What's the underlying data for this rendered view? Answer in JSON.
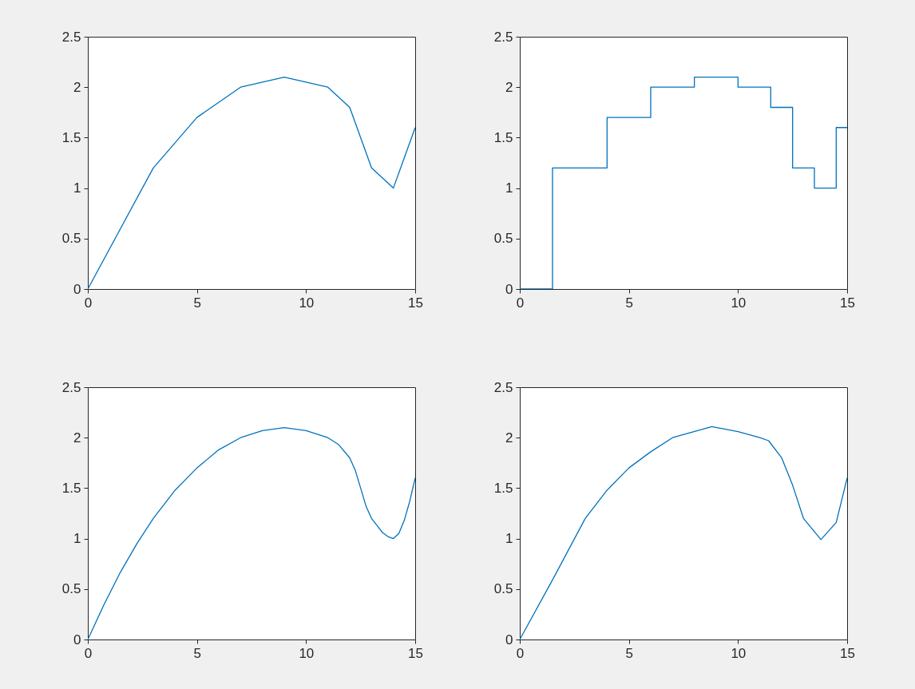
{
  "chart_data": [
    {
      "type": "line",
      "x": [
        0,
        3,
        5,
        7,
        9,
        11,
        12,
        13,
        14,
        15
      ],
      "series": [
        {
          "color": "#0072bd",
          "values": [
            0,
            1.2,
            1.7,
            2.0,
            2.1,
            2.0,
            1.8,
            1.2,
            1.0,
            1.6
          ]
        }
      ],
      "xlim": [
        0,
        15
      ],
      "xticks": [
        0,
        5,
        10,
        15
      ],
      "ylim": [
        0,
        2.5
      ],
      "yticks": [
        0,
        0.5,
        1,
        1.5,
        2,
        2.5
      ],
      "grid": false
    },
    {
      "type": "step",
      "x": [
        0,
        3,
        5,
        7,
        9,
        11,
        12,
        13,
        14,
        15
      ],
      "series": [
        {
          "color": "#0072bd",
          "values": [
            0,
            1.2,
            1.7,
            2.0,
            2.1,
            2.0,
            1.8,
            1.2,
            1.0,
            1.6
          ]
        }
      ],
      "xlim": [
        0,
        15
      ],
      "xticks": [
        0,
        5,
        10,
        15
      ],
      "ylim": [
        0,
        2.5
      ],
      "yticks": [
        0,
        0.5,
        1,
        1.5,
        2,
        2.5
      ],
      "grid": false
    },
    {
      "type": "line",
      "x": [
        0,
        0.75,
        1.5,
        2.25,
        3,
        4,
        5,
        6,
        7,
        8,
        9,
        10,
        11,
        11.5,
        12,
        12.25,
        12.5,
        12.75,
        13,
        13.25,
        13.5,
        13.75,
        14,
        14.25,
        14.5,
        14.75,
        15
      ],
      "series": [
        {
          "color": "#0072bd",
          "values": [
            0,
            0.35,
            0.67,
            0.95,
            1.2,
            1.48,
            1.7,
            1.88,
            2.0,
            2.07,
            2.1,
            2.07,
            2.0,
            1.93,
            1.8,
            1.68,
            1.5,
            1.32,
            1.2,
            1.13,
            1.06,
            1.02,
            1.0,
            1.05,
            1.18,
            1.37,
            1.6
          ]
        }
      ],
      "xlim": [
        0,
        15
      ],
      "xticks": [
        0,
        5,
        10,
        15
      ],
      "ylim": [
        0,
        2.5
      ],
      "yticks": [
        0,
        0.5,
        1,
        1.5,
        2,
        2.5
      ],
      "grid": false
    },
    {
      "type": "line",
      "x": [
        0,
        1.5,
        3,
        4,
        5,
        6,
        7,
        8.8,
        10,
        11,
        11.4,
        12,
        12.5,
        13,
        13.8,
        14.5,
        15
      ],
      "series": [
        {
          "color": "#0072bd",
          "values": [
            0,
            0.59,
            1.2,
            1.48,
            1.7,
            1.86,
            2.0,
            2.11,
            2.06,
            2.0,
            1.97,
            1.8,
            1.53,
            1.2,
            0.99,
            1.16,
            1.6
          ]
        }
      ],
      "xlim": [
        0,
        15
      ],
      "xticks": [
        0,
        5,
        10,
        15
      ],
      "ylim": [
        0,
        2.5
      ],
      "yticks": [
        0,
        0.5,
        1,
        1.5,
        2,
        2.5
      ],
      "grid": false
    }
  ]
}
